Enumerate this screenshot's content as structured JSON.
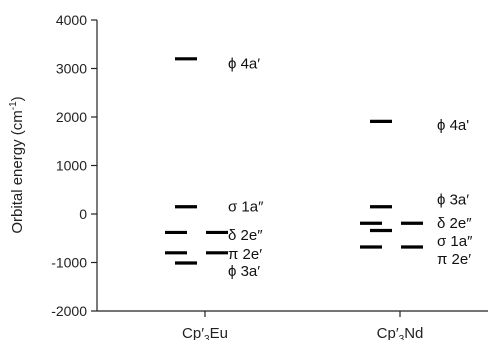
{
  "chart_data": {
    "type": "scatter",
    "ylabel_main": "Orbital energy (cm",
    "ylabel_sup": "-1",
    "ylabel_tail": ")",
    "ylim": [
      -2000,
      4000
    ],
    "yticks": [
      {
        "value": 4000,
        "label": "4000"
      },
      {
        "value": 3000,
        "label": "3000"
      },
      {
        "value": 2000,
        "label": "2000"
      },
      {
        "value": 1000,
        "label": "1000"
      },
      {
        "value": 0,
        "label": "0"
      },
      {
        "value": -1000,
        "label": "-1000"
      },
      {
        "value": -2000,
        "label": "-2000"
      }
    ],
    "categories": [
      {
        "main": "Cp",
        "sup": "′",
        "sub": "3",
        "tail": "Eu"
      },
      {
        "main": "Cp",
        "sup": "′",
        "sub": "3",
        "tail": "Nd"
      }
    ],
    "levels": [
      {
        "category": 0,
        "energy": 3200,
        "degenerate": false,
        "label": "ϕ 4a′"
      },
      {
        "category": 0,
        "energy": 150,
        "degenerate": false,
        "label": "σ 1a″"
      },
      {
        "category": 0,
        "energy": -380,
        "degenerate": true,
        "label": "δ 2e″"
      },
      {
        "category": 0,
        "energy": -800,
        "degenerate": true,
        "label": "π 2e′"
      },
      {
        "category": 0,
        "energy": -1010,
        "degenerate": false,
        "label": "ϕ 3a′"
      },
      {
        "category": 1,
        "energy": 1910,
        "degenerate": false,
        "label": "ϕ 4a'"
      },
      {
        "category": 1,
        "energy": 150,
        "degenerate": false,
        "label": "ϕ 3a′"
      },
      {
        "category": 1,
        "energy": -190,
        "degenerate": true,
        "label": "δ 2e″"
      },
      {
        "category": 1,
        "energy": -340,
        "degenerate": false,
        "label": "σ 1a″"
      },
      {
        "category": 1,
        "energy": -680,
        "degenerate": true,
        "label": "π 2e′"
      }
    ],
    "label_positions": [
      {
        "category": 0,
        "energy": 3100
      },
      {
        "category": 0,
        "energy": 150
      },
      {
        "category": 0,
        "energy": -430
      },
      {
        "category": 0,
        "energy": -820
      },
      {
        "category": 0,
        "energy": -1180
      },
      {
        "category": 1,
        "energy": 1830
      },
      {
        "category": 1,
        "energy": 300
      },
      {
        "category": 1,
        "energy": -190
      },
      {
        "category": 1,
        "energy": -560
      },
      {
        "category": 1,
        "energy": -930
      }
    ],
    "grid": false,
    "legend": "none"
  }
}
